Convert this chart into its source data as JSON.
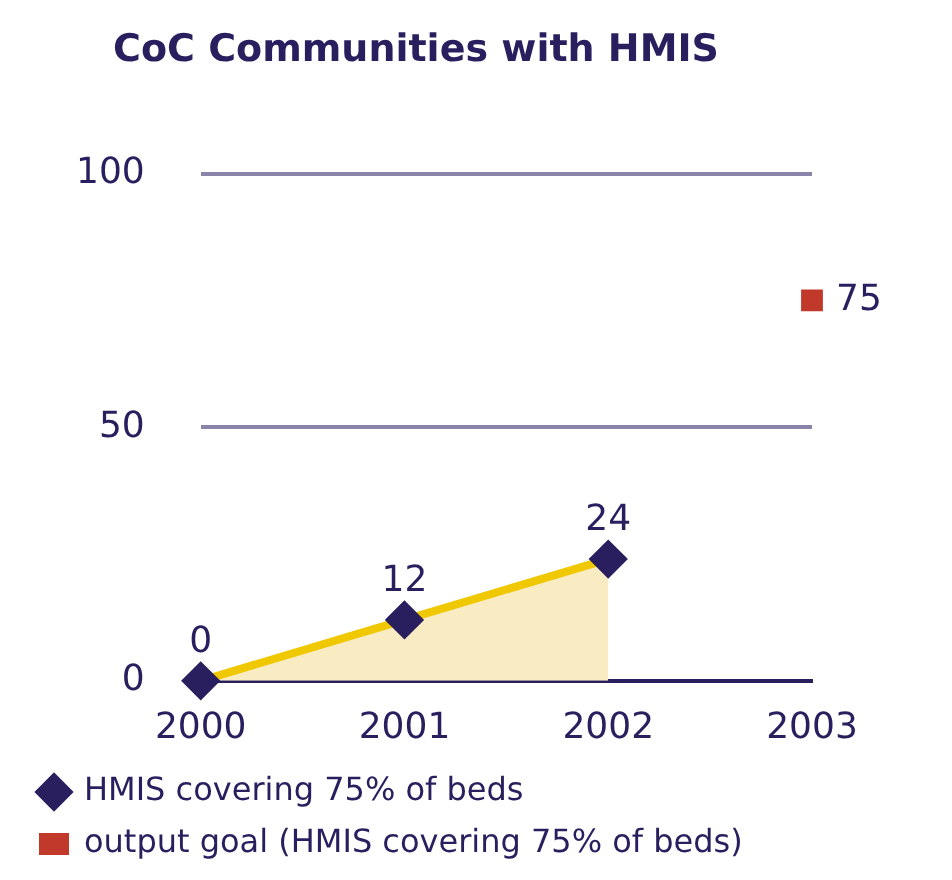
{
  "chart_data": {
    "type": "area",
    "title": "CoC Communities with HMIS",
    "categories": [
      "2000",
      "2001",
      "2002",
      "2003"
    ],
    "series": [
      {
        "name": "HMIS covering 75% of beds",
        "color": "#f0c800",
        "marker": "diamond",
        "values": [
          0,
          12,
          24,
          null
        ]
      },
      {
        "name": "output goal (HMIS covering 75% of beds)",
        "type": "scatter",
        "color": "#c0392b",
        "marker": "square",
        "values": [
          null,
          null,
          null,
          75
        ]
      }
    ],
    "ylim": [
      0,
      100
    ],
    "yticks": [
      0,
      50,
      100
    ],
    "grid": "y",
    "legend": "bottom",
    "data_labels": true
  }
}
